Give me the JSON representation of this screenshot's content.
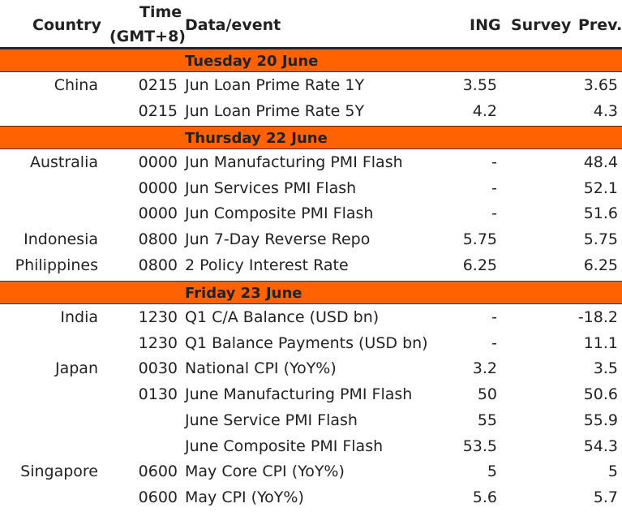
{
  "header": {
    "country": "Country",
    "time_line1": "Time",
    "time_line2": "(GMT+8)",
    "event": "Data/event",
    "ing": "ING",
    "survey": "Survey",
    "prev": "Prev."
  },
  "sections": [
    {
      "day": "Tuesday 20 June",
      "rows": [
        {
          "country": "China",
          "time": "0215",
          "event": "Jun Loan Prime Rate 1Y",
          "ing": "3.55",
          "survey": "",
          "prev": "3.65"
        },
        {
          "country": "",
          "time": "0215",
          "event": "Jun Loan Prime Rate 5Y",
          "ing": "4.2",
          "survey": "",
          "prev": "4.3"
        }
      ]
    },
    {
      "day": "Thursday 22 June",
      "rows": [
        {
          "country": "Australia",
          "time": "0000",
          "event": "Jun Manufacturing PMI Flash",
          "ing": "-",
          "survey": "",
          "prev": "48.4"
        },
        {
          "country": "",
          "time": "0000",
          "event": "Jun Services PMI Flash",
          "ing": "-",
          "survey": "",
          "prev": "52.1"
        },
        {
          "country": "",
          "time": "0000",
          "event": "Jun Composite PMI Flash",
          "ing": "-",
          "survey": "",
          "prev": "51.6"
        },
        {
          "country": "Indonesia",
          "time": "0800",
          "event": "Jun 7-Day Reverse Repo",
          "ing": "5.75",
          "survey": "",
          "prev": "5.75"
        },
        {
          "country": "Philippines",
          "time": "0800",
          "event": "2 Policy Interest Rate",
          "ing": "6.25",
          "survey": "",
          "prev": "6.25"
        }
      ]
    },
    {
      "day": "Friday 23 June",
      "rows": [
        {
          "country": "India",
          "time": "1230",
          "event": "Q1 C/A Balance (USD bn)",
          "ing": "-",
          "survey": "",
          "prev": "-18.2"
        },
        {
          "country": "",
          "time": "1230",
          "event": "Q1 Balance Payments (USD bn)",
          "ing": "-",
          "survey": "",
          "prev": "11.1"
        },
        {
          "country": "Japan",
          "time": "0030",
          "event": "National CPI (YoY%)",
          "ing": "3.2",
          "survey": "",
          "prev": "3.5"
        },
        {
          "country": "",
          "time": "0130",
          "event": "June Manufacturing PMI Flash",
          "ing": "50",
          "survey": "",
          "prev": "50.6"
        },
        {
          "country": "",
          "time": "",
          "event": "June Service PMI Flash",
          "ing": "55",
          "survey": "",
          "prev": "55.9"
        },
        {
          "country": "",
          "time": "",
          "event": "June Composite PMI Flash",
          "ing": "53.5",
          "survey": "",
          "prev": "54.3"
        },
        {
          "country": "Singapore",
          "time": "0600",
          "event": "May Core CPI (YoY%)",
          "ing": "5",
          "survey": "",
          "prev": "5"
        },
        {
          "country": "",
          "time": "0600",
          "event": "May CPI (YoY%)",
          "ing": "5.6",
          "survey": "",
          "prev": "5.7"
        }
      ]
    }
  ],
  "colors": {
    "band": "#ff6200",
    "text": "#222222"
  }
}
